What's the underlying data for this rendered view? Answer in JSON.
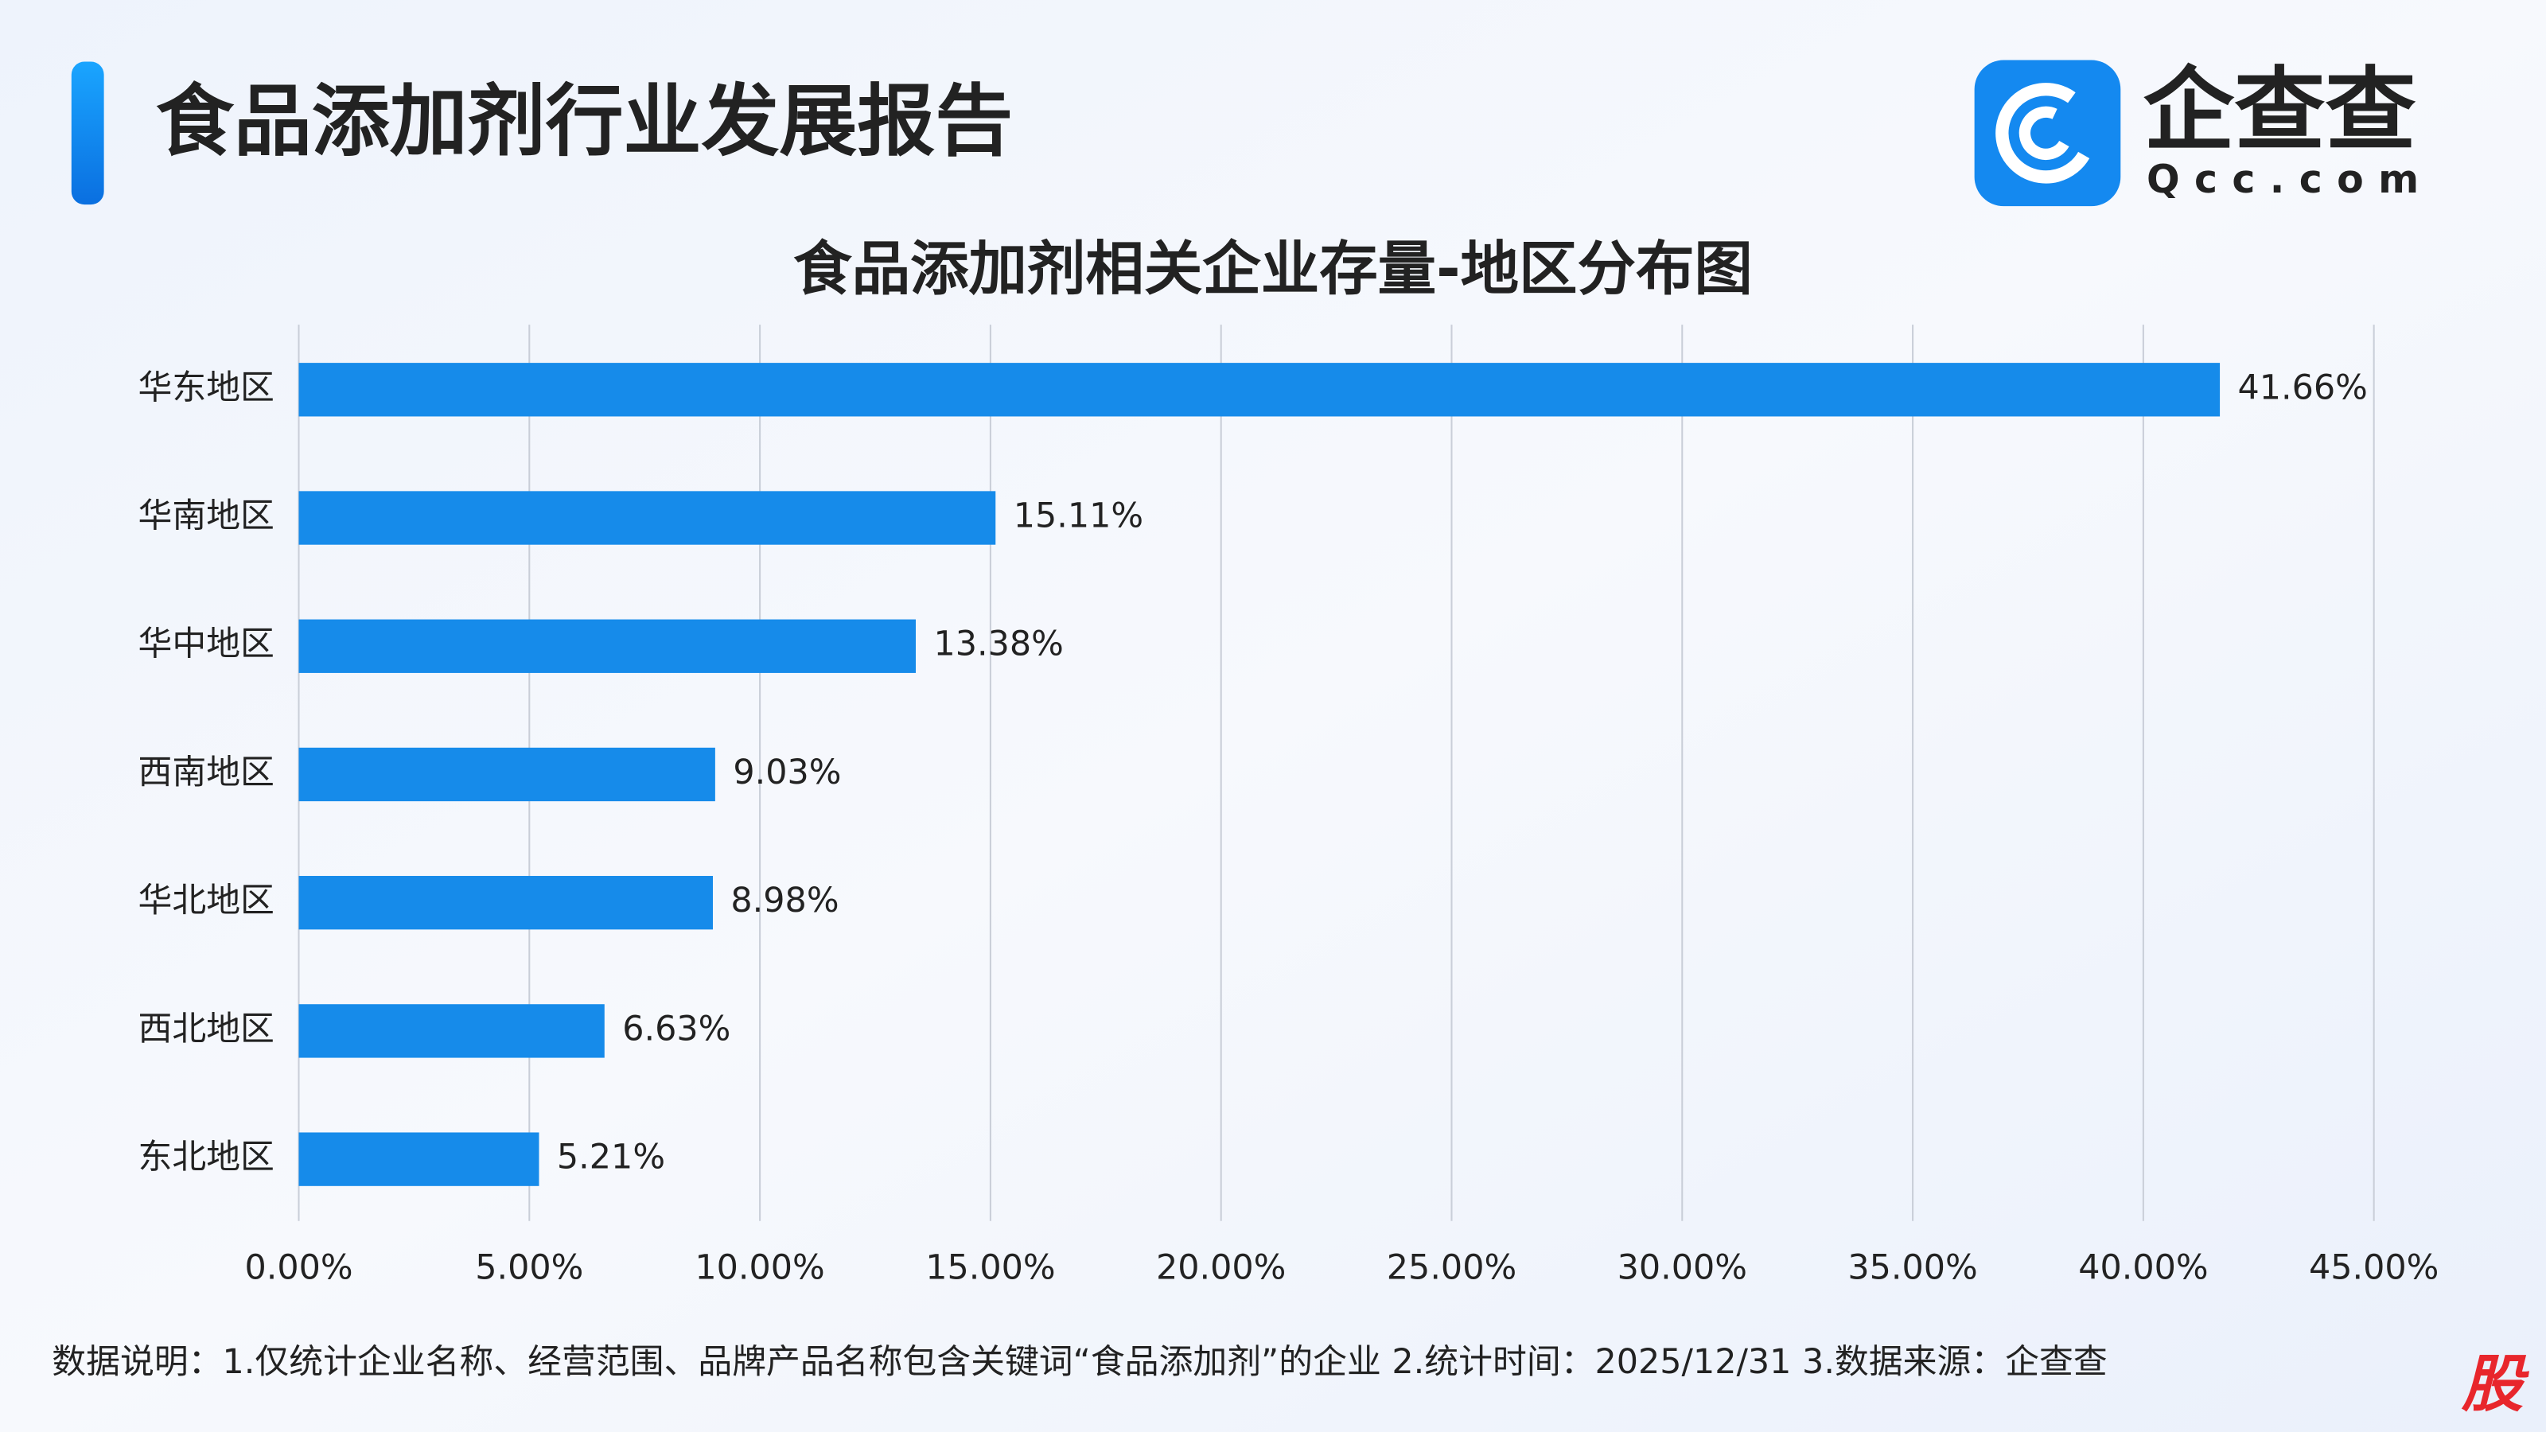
{
  "header": {
    "title": "食品添加剂行业发展报告",
    "logo_text": "企查查",
    "logo_domain": "Qcc.com"
  },
  "chart_data": {
    "type": "bar",
    "orientation": "horizontal",
    "title": "食品添加剂相关企业存量-地区分布图",
    "categories": [
      "华东地区",
      "华南地区",
      "华中地区",
      "西南地区",
      "华北地区",
      "西北地区",
      "东北地区"
    ],
    "values": [
      41.66,
      15.11,
      13.38,
      9.03,
      8.98,
      6.63,
      5.21
    ],
    "value_labels": [
      "41.66%",
      "15.11%",
      "13.38%",
      "9.03%",
      "8.98%",
      "6.63%",
      "5.21%"
    ],
    "color": "#168bea",
    "xlim": [
      0,
      45
    ],
    "xticks": [
      {
        "value": 0,
        "label": "0.00%"
      },
      {
        "value": 5,
        "label": "5.00%"
      },
      {
        "value": 10,
        "label": "10.00%"
      },
      {
        "value": 15,
        "label": "15.00%"
      },
      {
        "value": 20,
        "label": "20.00%"
      },
      {
        "value": 25,
        "label": "25.00%"
      },
      {
        "value": 30,
        "label": "30.00%"
      },
      {
        "value": 35,
        "label": "35.00%"
      },
      {
        "value": 40,
        "label": "40.00%"
      },
      {
        "value": 45,
        "label": "45.00%"
      }
    ],
    "grid": true
  },
  "footnote": "数据说明：1.仅统计企业名称、经营范围、品牌产品名称包含关键词“食品添加剂”的企业   2.统计时间：2025/12/31    3.数据来源：企查查",
  "watermark": "股"
}
